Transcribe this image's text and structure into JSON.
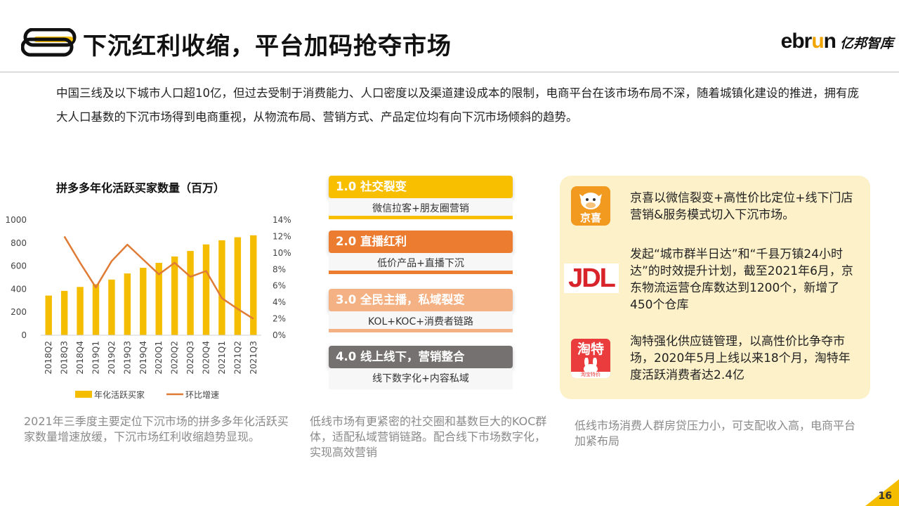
{
  "header": {
    "title": "下沉红利收缩，平台加码抢夺市场",
    "brand_en_a": "ebr",
    "brand_en_u": "u",
    "brand_en_b": "n",
    "brand_cn": "亿邦智库"
  },
  "intro": "中国三线及以下城市人口超10亿，但过去受制于消费能力、人口密度以及渠道建设成本的限制，电商平台在该市场布局不深，随着城镇化建设的推进，拥有庞大人口基数的下沉市场得到电商重视，从物流布局、营销方式、产品定位均有向下沉市场倾斜的趋势。",
  "chart_title": "拼多多年化活跃买家数量（百万）",
  "chart_data": {
    "type": "bar",
    "categories": [
      "2018Q2",
      "2018Q3",
      "2018Q4",
      "2019Q1",
      "2019Q2",
      "2019Q3",
      "2019Q4",
      "2020Q1",
      "2020Q2",
      "2020Q3",
      "2020Q4",
      "2021Q1",
      "2021Q2",
      "2021Q3"
    ],
    "series": [
      {
        "name": "年化活跃买家",
        "type": "bar",
        "axis": "left",
        "values": [
          344,
          385,
          419,
          443,
          483,
          536,
          585,
          628,
          683,
          731,
          788,
          824,
          850,
          867
        ]
      },
      {
        "name": "环比增速",
        "type": "line",
        "axis": "right",
        "values": [
          null,
          12.0,
          8.8,
          5.8,
          9.0,
          11.0,
          9.2,
          7.4,
          8.8,
          7.1,
          7.8,
          4.5,
          3.2,
          2.0
        ]
      }
    ],
    "y_left_ticks": [
      "0",
      "200",
      "400",
      "600",
      "800",
      "1000"
    ],
    "y_right_ticks": [
      "0%",
      "2%",
      "4%",
      "6%",
      "8%",
      "10%",
      "12%",
      "14%"
    ],
    "ylim_left": [
      0,
      1000
    ],
    "ylim_right": [
      0,
      14
    ],
    "legend_position": "bottom",
    "colors": {
      "bar": "#f5bd00",
      "line": "#e07b35"
    }
  },
  "captions": {
    "left": "2021年三季度主要定位下沉市场的拼多多年化活跃买家数量增速放缓，下沉市场红利收缩趋势显现。",
    "middle": "低线市场有更紧密的社交圈和基数巨大的KOC群体，适配私域营销链路。配合线下市场数字化，实现高效营销",
    "right": "低线市场消费人群房贷压力小，可支配收入高，电商平台加紧布局"
  },
  "stages": [
    {
      "label": "1.0 社交裂变",
      "sub": "微信拉客+朋友圈营销",
      "color": "#f8bf00"
    },
    {
      "label": "2.0 直播红利",
      "sub": "低价产品+直播下沉",
      "color": "#ec7d30"
    },
    {
      "label": "3.0 全民主播，私域裂变",
      "sub": "KOL+KOC+消费者链路",
      "color": "#f4b183"
    },
    {
      "label": "4.0 线上线下，营销整合",
      "sub": "线下数字化+内容私域",
      "color": "#757171"
    }
  ],
  "platforms": [
    {
      "logo_text": "京喜",
      "icon": "cow-face-icon",
      "text": "京喜以微信裂变+高性价比定位+线下门店营销&服务模式切入下沉市场。"
    },
    {
      "logo_text": "JDL",
      "icon": "jdl-logo",
      "text": "发起“城市群半日达”和“千县万镇24小时达”的时效提升计划，截至2021年6月，京东物流运营仓库数达到1200个，新增了450个仓库"
    },
    {
      "logo_text": "淘特",
      "logo_sub": "淘宝特价",
      "icon": "rabbit-icon",
      "text": "淘特强化供应链管理，以高性价比争夺市场，2020年5月上线以来18个月，淘特年度活跃消费者达2.4亿"
    }
  ],
  "page_number": "16"
}
